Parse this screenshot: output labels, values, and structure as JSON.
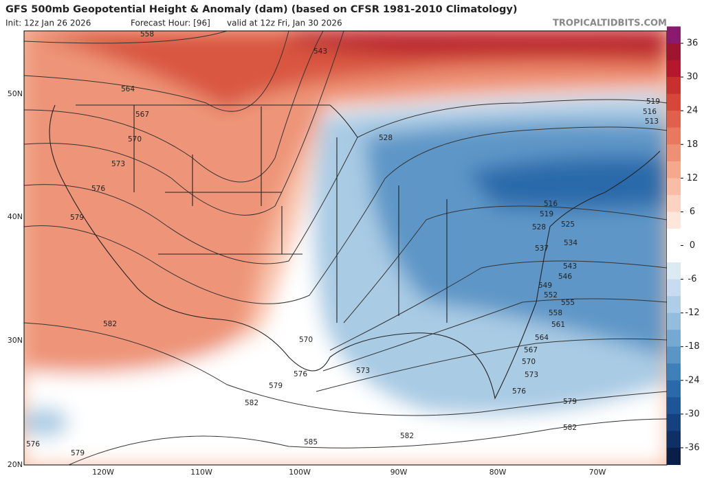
{
  "header": {
    "title": "GFS 500mb Geopotential Height & Anomaly (dam) (based on CFSR 1981-2010 Climatology)",
    "init": "Init: 12z Jan 26 2026",
    "forecast_hour": "Forecast Hour: [96]",
    "valid": "valid at 12z Fri, Jan 30 2026",
    "watermark": "TROPICALTIDBITS.COM"
  },
  "map": {
    "lat_labels": [
      "50N",
      "40N",
      "30N",
      "20N"
    ],
    "lon_labels": [
      "120W",
      "110W",
      "100W",
      "90W",
      "80W",
      "70W"
    ],
    "contour_labels": [
      558,
      543,
      564,
      567,
      570,
      573,
      576,
      579,
      582,
      528,
      519,
      516,
      513,
      516,
      519,
      528,
      525,
      534,
      537,
      543,
      546,
      549,
      552,
      555,
      558,
      561,
      564,
      567,
      570,
      573,
      576,
      579,
      582,
      582,
      570,
      573,
      576,
      579,
      582,
      585,
      576,
      579
    ]
  },
  "colorbar": {
    "lim": [
      -39,
      39
    ],
    "ticks": [
      36,
      30,
      24,
      18,
      12,
      6,
      0,
      -6,
      -12,
      -18,
      -24,
      -30,
      -36
    ],
    "colors": [
      "#8a1a6e",
      "#9e1530",
      "#b5172b",
      "#c8302f",
      "#d6473a",
      "#e0614b",
      "#e8785e",
      "#ee9075",
      "#f4a88c",
      "#f8bda4",
      "#fbd3c0",
      "#fde6da",
      "#ffffff",
      "#ffffff",
      "#dceaf4",
      "#c7dcee",
      "#aecde6",
      "#93bcdd",
      "#76a9d2",
      "#5a95c6",
      "#3f80b9",
      "#2b6aaa",
      "#1d5596",
      "#15427e",
      "#0e3065",
      "#0a1f48"
    ]
  }
}
